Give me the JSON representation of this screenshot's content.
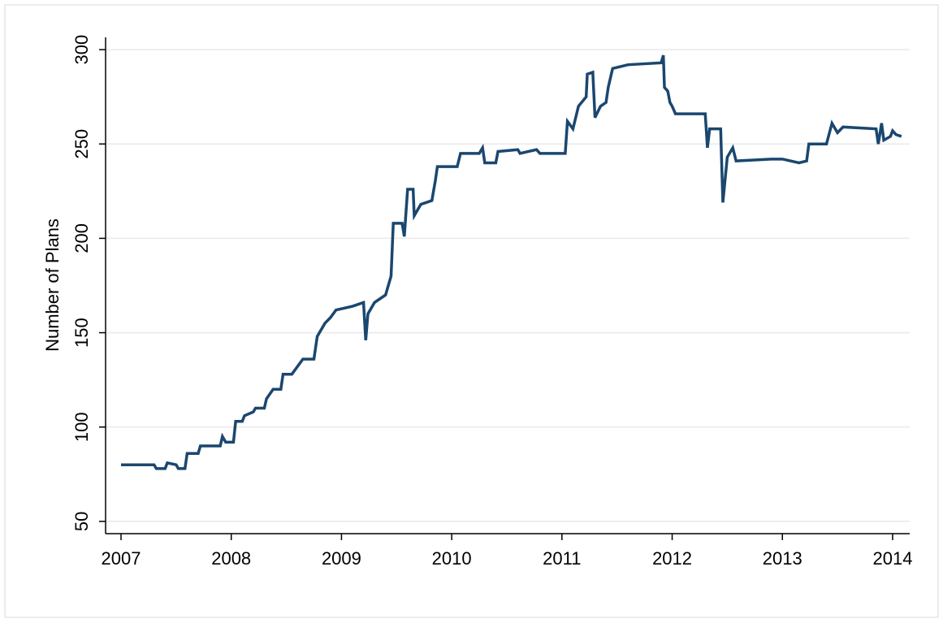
{
  "chart_data": {
    "type": "line",
    "y_label": "Number of Plans",
    "x": [
      2007.0,
      2007.3,
      2007.32,
      2007.4,
      2007.42,
      2007.5,
      2007.52,
      2007.58,
      2007.6,
      2007.7,
      2007.72,
      2007.9,
      2007.92,
      2007.95,
      2008.02,
      2008.04,
      2008.1,
      2008.12,
      2008.2,
      2008.22,
      2008.3,
      2008.32,
      2008.38,
      2008.45,
      2008.47,
      2008.55,
      2008.6,
      2008.65,
      2008.75,
      2008.78,
      2008.85,
      2008.9,
      2008.95,
      2009.1,
      2009.2,
      2009.22,
      2009.24,
      2009.3,
      2009.4,
      2009.45,
      2009.47,
      2009.55,
      2009.57,
      2009.6,
      2009.65,
      2009.66,
      2009.72,
      2009.82,
      2009.85,
      2009.87,
      2010.05,
      2010.08,
      2010.25,
      2010.28,
      2010.3,
      2010.4,
      2010.42,
      2010.6,
      2010.62,
      2010.77,
      2010.8,
      2011.03,
      2011.05,
      2011.1,
      2011.15,
      2011.22,
      2011.23,
      2011.28,
      2011.3,
      2011.35,
      2011.4,
      2011.42,
      2011.46,
      2011.6,
      2011.9,
      2011.92,
      2011.93,
      2011.96,
      2011.98,
      2012.0,
      2012.03,
      2012.3,
      2012.32,
      2012.34,
      2012.44,
      2012.46,
      2012.5,
      2012.55,
      2012.58,
      2012.9,
      2013.0,
      2013.15,
      2013.22,
      2013.24,
      2013.4,
      2013.45,
      2013.5,
      2013.55,
      2013.85,
      2013.87,
      2013.9,
      2013.92,
      2013.98,
      2014.0,
      2014.03,
      2014.08
    ],
    "series": [
      {
        "color": "#1a476f",
        "values": [
          80,
          80,
          78,
          78,
          81,
          80,
          78,
          78,
          86,
          86,
          90,
          90,
          95,
          92,
          92,
          103,
          103,
          106,
          108,
          110,
          110,
          115,
          120,
          120,
          128,
          128,
          132,
          136,
          136,
          148,
          155,
          158,
          162,
          164,
          166,
          146,
          160,
          166,
          170,
          180,
          208,
          208,
          201,
          226,
          226,
          212,
          218,
          220,
          230,
          238,
          238,
          245,
          245,
          248,
          240,
          240,
          246,
          247,
          245,
          247,
          245,
          245,
          262,
          258,
          270,
          275,
          287,
          288,
          264,
          270,
          272,
          280,
          290,
          292,
          293,
          297,
          280,
          278,
          272,
          270,
          266,
          266,
          248,
          258,
          258,
          219,
          243,
          248,
          241,
          242,
          242,
          240,
          241,
          250,
          250,
          261,
          256,
          259,
          258,
          250,
          261,
          252,
          254,
          257,
          255,
          254
        ]
      }
    ],
    "xlim": [
      2006.86,
      2014.155
    ],
    "xticks": [
      2007,
      2008,
      2009,
      2010,
      2011,
      2012,
      2013,
      2014
    ],
    "ylim": [
      43.5,
      306.5
    ],
    "yticks": [
      50,
      100,
      150,
      200,
      250,
      300
    ],
    "grid": true
  }
}
